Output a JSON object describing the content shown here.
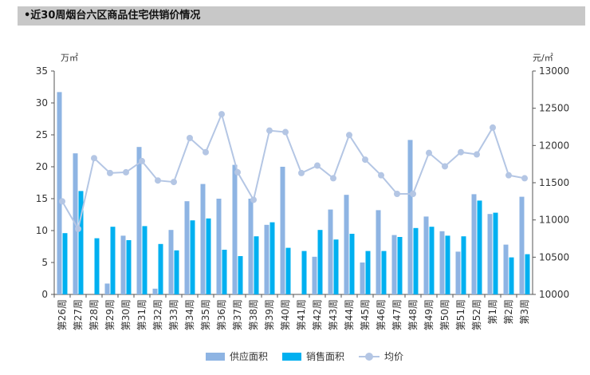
{
  "title": "•近30周烟台六区商品住宅供销价情况",
  "left_unit": "万㎡",
  "right_unit": "元/㎡",
  "colors": {
    "supply": "#8eb4e3",
    "sales": "#00b0f0",
    "price": "#b4c6e4"
  },
  "legend": {
    "supply": "供应面积",
    "sales": "销售面积",
    "price": "均价"
  },
  "chart_data": {
    "type": "bar",
    "categories": [
      "第26周",
      "第27周",
      "第28周",
      "第29周",
      "第30周",
      "第31周",
      "第32周",
      "第33周",
      "第34周",
      "第35周",
      "第36周",
      "第37周",
      "第38周",
      "第39周",
      "第40周",
      "第41周",
      "第42周",
      "第43周",
      "第44周",
      "第45周",
      "第46周",
      "第47周",
      "第48周",
      "第49周",
      "第50周",
      "第51周",
      "第52周",
      "第1周",
      "第2周",
      "第3周"
    ],
    "series": [
      {
        "name": "供应面积",
        "type": "bar",
        "axis": "left",
        "values": [
          31.7,
          22.1,
          0,
          1.7,
          9.2,
          23.1,
          0.9,
          10.1,
          14.6,
          17.3,
          15.0,
          20.3,
          15.0,
          10.9,
          20.0,
          0,
          5.9,
          13.3,
          15.6,
          5.0,
          13.2,
          9.3,
          24.2,
          12.2,
          9.9,
          6.7,
          15.7,
          12.6,
          7.8,
          15.3
        ]
      },
      {
        "name": "销售面积",
        "type": "bar",
        "axis": "left",
        "values": [
          9.6,
          16.2,
          8.8,
          10.6,
          8.5,
          10.7,
          7.9,
          6.9,
          11.6,
          11.9,
          7.0,
          6.0,
          9.1,
          11.3,
          7.3,
          6.8,
          10.1,
          8.6,
          9.5,
          6.8,
          6.8,
          9.0,
          10.4,
          10.6,
          9.2,
          9.1,
          14.7,
          12.8,
          5.8,
          6.3
        ]
      },
      {
        "name": "均价",
        "type": "line",
        "axis": "right",
        "values": [
          11250,
          10880,
          11830,
          11630,
          11640,
          11790,
          11530,
          11510,
          12100,
          11910,
          12420,
          11640,
          11270,
          12200,
          12180,
          11630,
          11730,
          11560,
          12140,
          11810,
          11600,
          11350,
          11350,
          11900,
          11720,
          11910,
          11880,
          12240,
          11600,
          11560
        ]
      }
    ],
    "ylim_left": [
      0,
      35
    ],
    "yticks_left": [
      0,
      5,
      10,
      15,
      20,
      25,
      30,
      35
    ],
    "ylim_right": [
      10000,
      13000
    ],
    "yticks_right": [
      10000,
      10500,
      11000,
      11500,
      12000,
      12500,
      13000
    ],
    "legend_position": "bottom",
    "grid": false
  }
}
